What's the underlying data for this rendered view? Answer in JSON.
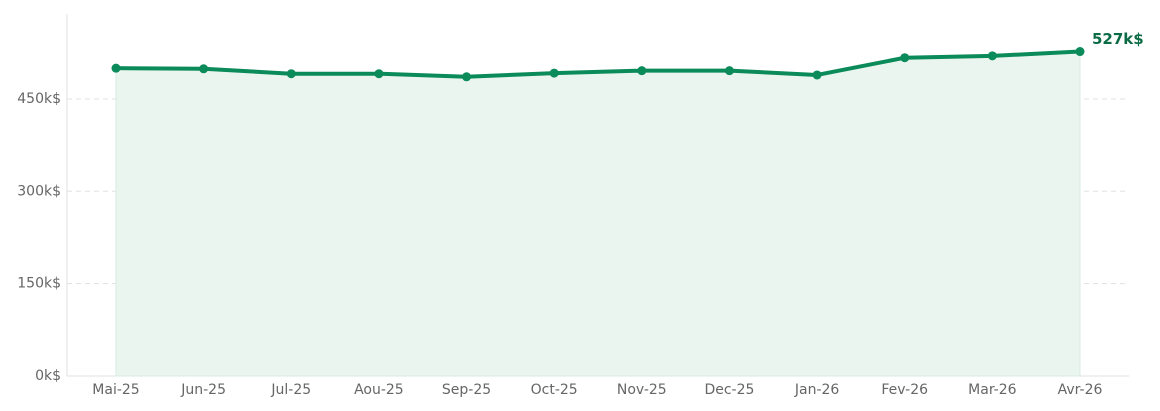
{
  "chart_data": {
    "type": "line",
    "categories": [
      "Mai-25",
      "Jun-25",
      "Jul-25",
      "Aou-25",
      "Sep-25",
      "Oct-25",
      "Nov-25",
      "Dec-25",
      "Jan-26",
      "Fev-26",
      "Mar-26",
      "Avr-26"
    ],
    "values": [
      500,
      499,
      491,
      491,
      486,
      492,
      496,
      496,
      489,
      517,
      520,
      527
    ],
    "value_labels": [
      null,
      null,
      null,
      null,
      null,
      null,
      null,
      null,
      null,
      null,
      null,
      "527k$"
    ],
    "color": "#0b8a5a",
    "area": true,
    "ylim": [
      0,
      588
    ],
    "yticks": [
      {
        "value": 0,
        "label": "0k$"
      },
      {
        "value": 150,
        "label": "150k$"
      },
      {
        "value": 300,
        "label": "300k$"
      },
      {
        "value": 450,
        "label": "450k$"
      }
    ],
    "grid": true
  }
}
